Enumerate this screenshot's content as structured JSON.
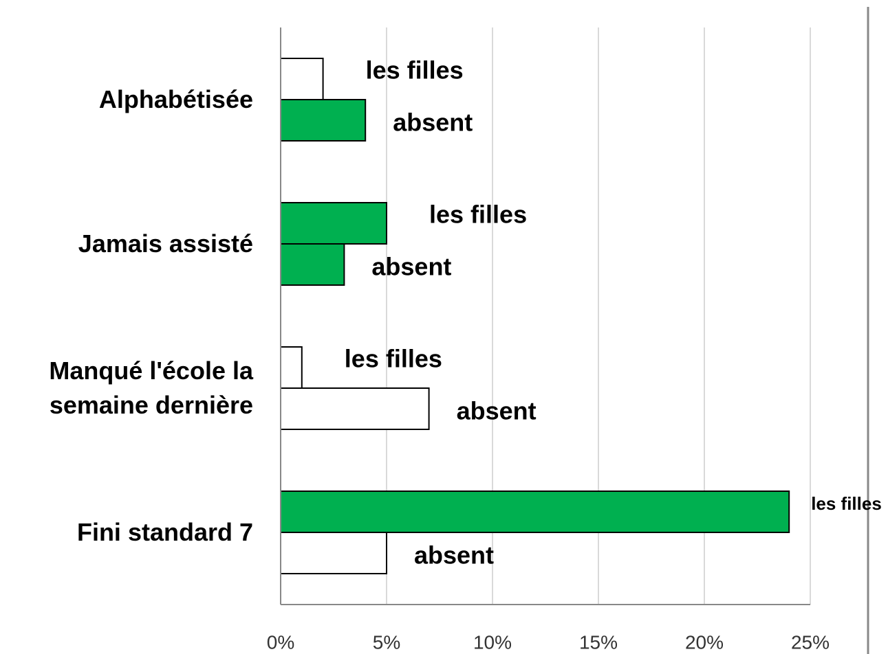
{
  "chart_data": {
    "type": "barh",
    "categories": [
      "Alphabétisée",
      "Jamais assisté",
      "Manqué l'école la semaine dernière",
      "Fini standard 7"
    ],
    "series": [
      {
        "name": "les filles",
        "values": [
          2,
          5,
          1,
          24
        ],
        "colors": [
          "#ffffff",
          "#00b050",
          "#ffffff",
          "#00b050"
        ]
      },
      {
        "name": "absent",
        "values": [
          4,
          3,
          7,
          5
        ],
        "colors": [
          "#00b050",
          "#00b050",
          "#ffffff",
          "#ffffff"
        ]
      }
    ],
    "xlim": [
      0,
      25
    ],
    "xticks": [
      {
        "value": 0,
        "label": "0%"
      },
      {
        "value": 5,
        "label": "5%"
      },
      {
        "value": 10,
        "label": "10%"
      },
      {
        "value": 15,
        "label": "15%"
      },
      {
        "value": 20,
        "label": "20%"
      },
      {
        "value": 25,
        "label": "25%"
      }
    ],
    "grid": true
  }
}
